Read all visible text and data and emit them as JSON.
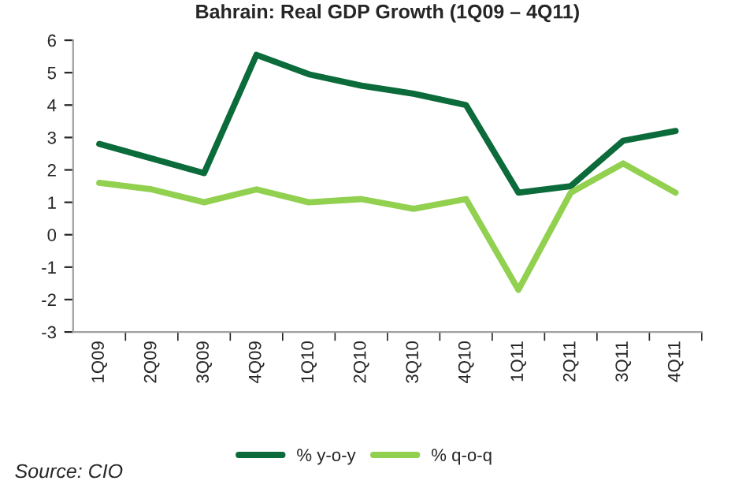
{
  "chart_data": {
    "type": "line",
    "title": "Bahrain: Real GDP Growth (1Q09 – 4Q11)",
    "categories": [
      "1Q09",
      "2Q09",
      "3Q09",
      "4Q09",
      "1Q10",
      "2Q10",
      "3Q10",
      "4Q10",
      "1Q11",
      "2Q11",
      "3Q11",
      "4Q11"
    ],
    "series": [
      {
        "name": "% y-o-y",
        "color": "#0b6b3a",
        "values": [
          2.8,
          2.35,
          1.9,
          5.55,
          4.95,
          4.6,
          4.35,
          4.0,
          1.3,
          1.5,
          2.9,
          3.2
        ]
      },
      {
        "name": "% q-o-q",
        "color": "#92d050",
        "values": [
          1.6,
          1.4,
          1.0,
          1.4,
          1.0,
          1.1,
          0.8,
          1.1,
          -1.7,
          1.3,
          2.2,
          1.3
        ]
      }
    ],
    "ylim": [
      -3,
      6
    ],
    "yticks": [
      -3,
      -2,
      -1,
      0,
      1,
      2,
      3,
      4,
      5,
      6
    ],
    "grid": false,
    "legend": "bottom",
    "marker": "none",
    "line_style": "solid",
    "annotations": [
      "Source: CIO"
    ]
  }
}
